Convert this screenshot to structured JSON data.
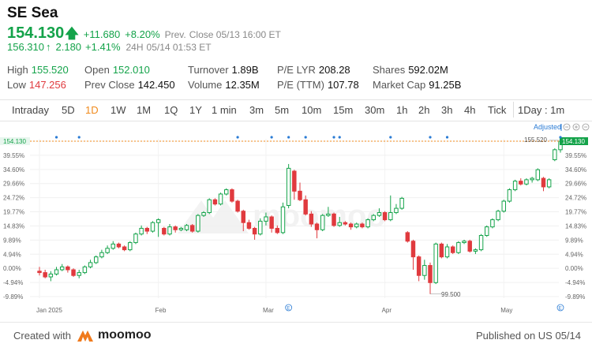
{
  "header": {
    "name": "SE Sea",
    "price": "154.130",
    "change": "+11.680",
    "change_pct": "+8.20%",
    "prev_close_label": "Prev.",
    "prev_close_time": "Close 05/13 16:00 ET",
    "ah_price": "156.310",
    "ah_change": "2.180",
    "ah_change_pct": "+1.41%",
    "ah_label": "24H",
    "ah_time": "05/14 01:53 ET"
  },
  "stats": {
    "high_label": "High",
    "high": "155.520",
    "low_label": "Low",
    "low": "147.256",
    "open_label": "Open",
    "open": "152.010",
    "prev_close_label": "Prev Close",
    "prev_close": "142.450",
    "turnover_label": "Turnover",
    "turnover": "1.89B",
    "volume_label": "Volume",
    "volume": "12.35M",
    "pe_lyr_label": "P/E LYR",
    "pe_lyr": "208.28",
    "pe_ttm_label": "P/E (TTM)",
    "pe_ttm": "107.78",
    "shares_label": "Shares",
    "shares": "592.02M",
    "mktcap_label": "Market Cap",
    "mktcap": "91.25B"
  },
  "tabs": [
    "Intraday",
    "5D",
    "1D",
    "1W",
    "1M",
    "1Q",
    "1Y",
    "1 min",
    "3m",
    "5m",
    "10m",
    "15m",
    "30m",
    "1h",
    "2h",
    "3h",
    "4h",
    "Tick",
    "1Day : 1m"
  ],
  "active_tab": "1D",
  "chart_controls": {
    "adjusted": "Adjusted"
  },
  "chart_data": {
    "type": "candlestick",
    "y_ticks": [
      "44.49%",
      "39.55%",
      "34.60%",
      "29.66%",
      "24.72%",
      "19.77%",
      "14.83%",
      "9.89%",
      "4.94%",
      "0.00%",
      "-4.94%",
      "-9.89%"
    ],
    "ylim": [
      -9.89,
      44.49
    ],
    "x_ticks": [
      "Jan 2025",
      "Feb",
      "Mar",
      "Apr",
      "May"
    ],
    "current_price_label": "154.130",
    "high_annotation": "155.520",
    "low_annotation": "99.500",
    "colors": {
      "up": "#14a34a",
      "down": "#e03a3e",
      "price_line": "#f08a1c"
    },
    "candles": [
      [
        -1.0,
        -1.5,
        0.5,
        -2.5
      ],
      [
        -1.5,
        -3.0,
        -0.5,
        -3.5
      ],
      [
        -3.0,
        -2.0,
        -1.0,
        -4.5
      ],
      [
        -2.0,
        -0.5,
        0.5,
        -2.5
      ],
      [
        -0.5,
        0.5,
        1.5,
        -1.0
      ],
      [
        0.5,
        -0.5,
        1.0,
        -1.5
      ],
      [
        -0.5,
        -2.5,
        0.0,
        -3.0
      ],
      [
        -2.5,
        -1.5,
        -0.5,
        -3.5
      ],
      [
        -1.5,
        0.5,
        1.0,
        -2.0
      ],
      [
        0.5,
        2.0,
        3.0,
        0.0
      ],
      [
        2.0,
        4.0,
        4.5,
        1.5
      ],
      [
        4.0,
        5.5,
        6.5,
        3.5
      ],
      [
        5.5,
        7.0,
        8.0,
        5.0
      ],
      [
        7.0,
        8.5,
        9.5,
        6.5
      ],
      [
        8.5,
        7.5,
        9.0,
        7.0
      ],
      [
        7.5,
        6.5,
        8.0,
        6.0
      ],
      [
        6.5,
        9.0,
        9.5,
        6.0
      ],
      [
        9.0,
        12.0,
        12.5,
        8.5
      ],
      [
        12.0,
        14.0,
        15.0,
        11.5
      ],
      [
        14.0,
        13.0,
        14.5,
        12.0
      ],
      [
        13.0,
        16.0,
        16.5,
        12.5
      ],
      [
        16.0,
        17.0,
        17.5,
        11.0
      ],
      [
        14.0,
        12.0,
        14.5,
        11.5
      ],
      [
        12.0,
        14.5,
        15.5,
        11.5
      ],
      [
        14.5,
        13.5,
        15.0,
        12.5
      ],
      [
        13.5,
        14.0,
        14.5,
        13.0
      ],
      [
        13.5,
        15.0,
        15.5,
        13.0
      ],
      [
        15.0,
        13.0,
        15.5,
        12.5
      ],
      [
        13.0,
        18.5,
        19.0,
        12.5
      ],
      [
        18.5,
        19.5,
        20.0,
        18.0
      ],
      [
        19.5,
        24.0,
        24.5,
        19.0
      ],
      [
        24.0,
        22.5,
        24.5,
        22.0
      ],
      [
        22.5,
        26.0,
        26.5,
        22.0
      ],
      [
        26.0,
        27.5,
        28.0,
        25.5
      ],
      [
        27.5,
        23.5,
        28.0,
        23.0
      ],
      [
        23.5,
        20.0,
        24.0,
        19.5
      ],
      [
        20.0,
        16.0,
        20.5,
        13.0
      ],
      [
        16.0,
        14.0,
        17.0,
        13.5
      ],
      [
        14.0,
        12.0,
        14.5,
        10.0
      ],
      [
        12.0,
        16.5,
        17.5,
        11.5
      ],
      [
        16.5,
        18.0,
        19.5,
        15.0
      ],
      [
        18.0,
        14.0,
        18.5,
        12.5
      ],
      [
        14.0,
        12.5,
        15.0,
        12.0
      ],
      [
        12.5,
        21.5,
        23.0,
        12.0
      ],
      [
        22.0,
        35.0,
        36.5,
        21.0
      ],
      [
        34.0,
        27.0,
        34.5,
        24.0
      ],
      [
        27.0,
        24.0,
        30.0,
        23.5
      ],
      [
        24.0,
        19.0,
        25.5,
        18.5
      ],
      [
        19.0,
        15.5,
        20.0,
        14.5
      ],
      [
        15.5,
        13.5,
        16.0,
        10.5
      ],
      [
        13.5,
        18.5,
        19.0,
        13.0
      ],
      [
        18.5,
        19.0,
        21.5,
        18.0
      ],
      [
        19.0,
        15.0,
        19.5,
        14.5
      ],
      [
        15.0,
        16.0,
        18.0,
        14.5
      ],
      [
        16.0,
        15.5,
        16.5,
        15.0
      ],
      [
        15.5,
        14.5,
        16.0,
        13.5
      ],
      [
        14.5,
        15.5,
        16.0,
        14.0
      ],
      [
        15.5,
        14.5,
        16.0,
        14.0
      ],
      [
        14.5,
        17.0,
        17.5,
        14.0
      ],
      [
        17.0,
        18.5,
        19.0,
        16.5
      ],
      [
        18.5,
        19.5,
        21.0,
        18.0
      ],
      [
        19.5,
        17.0,
        20.0,
        16.5
      ],
      [
        17.0,
        19.5,
        25.5,
        16.5
      ],
      [
        19.5,
        21.0,
        22.5,
        19.0
      ],
      [
        21.0,
        24.5,
        25.0,
        20.5
      ],
      [
        12.5,
        9.5,
        13.0,
        9.0
      ],
      [
        9.5,
        4.0,
        10.0,
        -0.5
      ],
      [
        4.0,
        -2.5,
        4.5,
        -4.5
      ],
      [
        -2.5,
        1.0,
        3.0,
        -4.0
      ],
      [
        1.0,
        -5.0,
        2.0,
        -9.0
      ],
      [
        -5.0,
        8.5,
        9.0,
        -5.5
      ],
      [
        8.5,
        4.0,
        9.0,
        3.5
      ],
      [
        4.0,
        7.5,
        8.5,
        3.5
      ],
      [
        7.5,
        5.5,
        8.0,
        5.0
      ],
      [
        5.5,
        9.0,
        9.5,
        5.0
      ],
      [
        9.0,
        9.5,
        10.0,
        8.5
      ],
      [
        9.5,
        6.0,
        10.0,
        5.5
      ],
      [
        6.0,
        6.5,
        7.0,
        5.0
      ],
      [
        6.5,
        11.5,
        12.0,
        6.0
      ],
      [
        11.5,
        14.5,
        15.0,
        11.0
      ],
      [
        14.5,
        17.0,
        17.5,
        14.0
      ],
      [
        17.0,
        20.0,
        20.5,
        16.5
      ],
      [
        20.0,
        23.5,
        24.0,
        19.5
      ],
      [
        23.5,
        27.5,
        28.0,
        23.0
      ],
      [
        27.5,
        30.5,
        31.0,
        27.0
      ],
      [
        30.5,
        29.5,
        31.5,
        29.0
      ],
      [
        29.5,
        31.0,
        31.5,
        29.0
      ],
      [
        31.0,
        31.5,
        32.0,
        30.0
      ],
      [
        31.0,
        34.5,
        35.0,
        30.5
      ],
      [
        31.5,
        28.5,
        32.0,
        27.0
      ],
      [
        28.5,
        31.0,
        31.5,
        28.0
      ],
      [
        38.0,
        41.5,
        42.0,
        37.5
      ],
      [
        41.5,
        44.49,
        44.8,
        40.5
      ]
    ]
  }
}
